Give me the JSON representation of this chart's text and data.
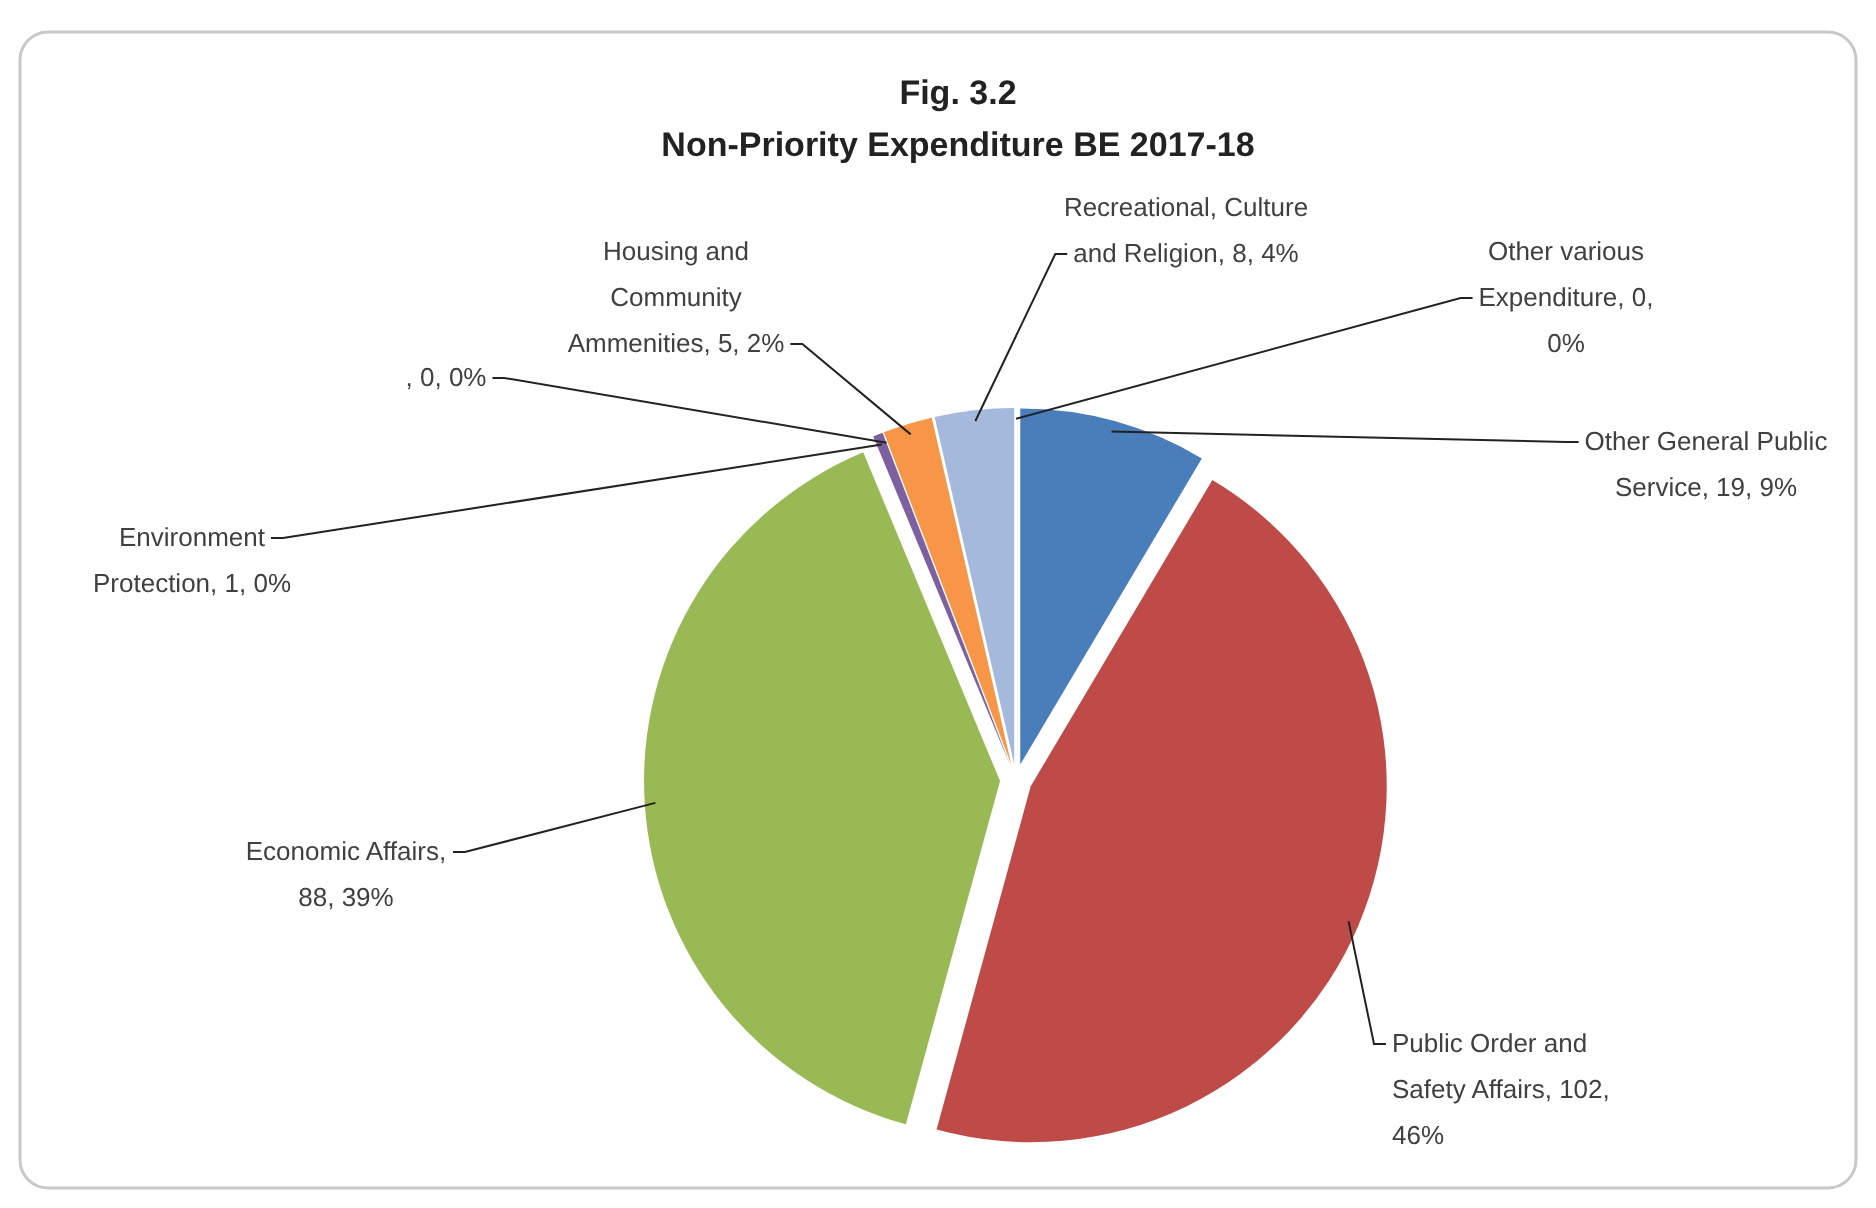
{
  "chart_data": {
    "type": "pie",
    "title": "Fig. 3.2",
    "subtitle": "Non-Priority Expenditure BE 2017-18",
    "categories": [
      "Other General Public Service",
      "Public Order and Safety Affairs",
      "Economic Affairs",
      "Environment Protection",
      null,
      "Housing and Community Ammenities",
      "Recreational, Culture and Religion",
      "Other various Expenditure"
    ],
    "values": [
      19,
      102,
      88,
      1,
      0,
      5,
      8,
      0
    ],
    "value_labels": [
      ", 19, 9%",
      ", 102, 46%",
      ", 88, 39%",
      ", 1, 0%",
      ", 0, 0%",
      ", 5, 2%",
      ", 8, 4%",
      ", 0, 0%"
    ],
    "colors": [
      "#4a7ebb",
      "#be4b48",
      "#98b954",
      "#7d60a0",
      "#46aac5",
      "#f79646",
      "#a5b9dd",
      "#c0504d"
    ]
  }
}
